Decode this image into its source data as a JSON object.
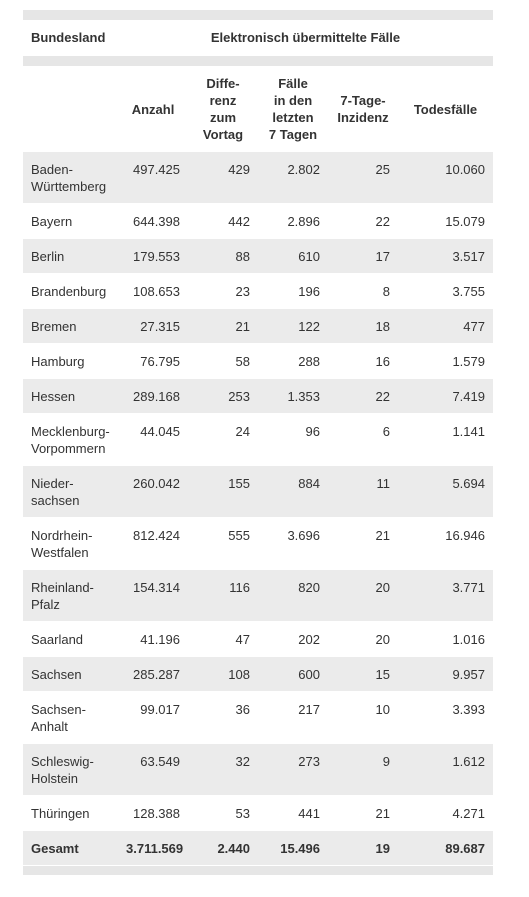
{
  "header": {
    "first": "Bundesland",
    "group": "Elektronisch übermittelte Fälle"
  },
  "columns": [
    {
      "lines": [
        "Anzahl"
      ]
    },
    {
      "lines": [
        "Diffe-",
        "renz",
        "zum",
        "Vortag"
      ]
    },
    {
      "lines": [
        "Fälle",
        "in den",
        "letzten",
        "7 Tagen"
      ]
    },
    {
      "lines": [
        "7-Tage-",
        "Inzidenz"
      ]
    },
    {
      "lines": [
        "Todesfälle"
      ]
    }
  ],
  "rows": [
    {
      "name": [
        "Baden-",
        "Württemberg"
      ],
      "values": [
        "497.425",
        "429",
        "2.802",
        "25",
        "10.060"
      ]
    },
    {
      "name": [
        "Bayern"
      ],
      "values": [
        "644.398",
        "442",
        "2.896",
        "22",
        "15.079"
      ]
    },
    {
      "name": [
        "Berlin"
      ],
      "values": [
        "179.553",
        "88",
        "610",
        "17",
        "3.517"
      ]
    },
    {
      "name": [
        "Brandenburg"
      ],
      "values": [
        "108.653",
        "23",
        "196",
        "8",
        "3.755"
      ]
    },
    {
      "name": [
        "Bremen"
      ],
      "values": [
        "27.315",
        "21",
        "122",
        "18",
        "477"
      ]
    },
    {
      "name": [
        "Hamburg"
      ],
      "values": [
        "76.795",
        "58",
        "288",
        "16",
        "1.579"
      ]
    },
    {
      "name": [
        "Hessen"
      ],
      "values": [
        "289.168",
        "253",
        "1.353",
        "22",
        "7.419"
      ]
    },
    {
      "name": [
        "Mecklenburg-",
        "Vorpommern"
      ],
      "values": [
        "44.045",
        "24",
        "96",
        "6",
        "1.141"
      ]
    },
    {
      "name": [
        "Nieder-",
        "sachsen"
      ],
      "values": [
        "260.042",
        "155",
        "884",
        "11",
        "5.694"
      ]
    },
    {
      "name": [
        "Nordrhein-",
        "Westfalen"
      ],
      "values": [
        "812.424",
        "555",
        "3.696",
        "21",
        "16.946"
      ]
    },
    {
      "name": [
        "Rheinland-",
        "Pfalz"
      ],
      "values": [
        "154.314",
        "116",
        "820",
        "20",
        "3.771"
      ]
    },
    {
      "name": [
        "Saarland"
      ],
      "values": [
        "41.196",
        "47",
        "202",
        "20",
        "1.016"
      ]
    },
    {
      "name": [
        "Sachsen"
      ],
      "values": [
        "285.287",
        "108",
        "600",
        "15",
        "9.957"
      ]
    },
    {
      "name": [
        "Sachsen-",
        "Anhalt"
      ],
      "values": [
        "99.017",
        "36",
        "217",
        "10",
        "3.393"
      ]
    },
    {
      "name": [
        "Schleswig-",
        "Holstein"
      ],
      "values": [
        "63.549",
        "32",
        "273",
        "9",
        "1.612"
      ]
    },
    {
      "name": [
        "Thüringen"
      ],
      "values": [
        "128.388",
        "53",
        "441",
        "21",
        "4.271"
      ]
    }
  ],
  "total": {
    "name": "Gesamt",
    "values": [
      "3.711.569",
      "2.440",
      "15.496",
      "19",
      "89.687"
    ]
  }
}
